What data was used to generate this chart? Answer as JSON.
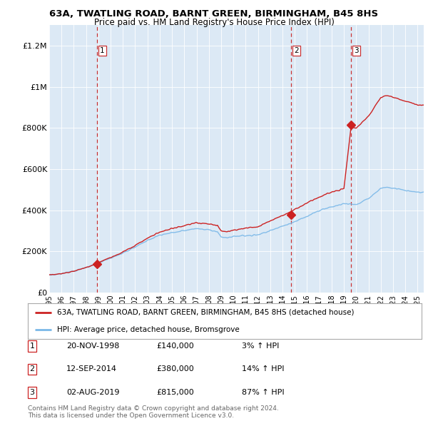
{
  "title": "63A, TWATLING ROAD, BARNT GREEN, BIRMINGHAM, B45 8HS",
  "subtitle": "Price paid vs. HM Land Registry's House Price Index (HPI)",
  "bg_color": "#dce9f5",
  "hpi_color": "#7ab8e8",
  "price_color": "#cc2222",
  "sale_marker_color": "#cc2222",
  "dashed_line_color": "#cc3333",
  "ylabel_ticks": [
    "£0",
    "£200K",
    "£400K",
    "£600K",
    "£800K",
    "£1M",
    "£1.2M"
  ],
  "ytick_values": [
    0,
    200000,
    400000,
    600000,
    800000,
    1000000,
    1200000
  ],
  "ylim": [
    0,
    1300000
  ],
  "xlim_start": 1995.0,
  "xlim_end": 2025.5,
  "sale_dates": [
    1998.88,
    2014.7,
    2019.58
  ],
  "sale_prices": [
    140000,
    380000,
    815000
  ],
  "sale_labels": [
    "1",
    "2",
    "3"
  ],
  "legend_label_red": "63A, TWATLING ROAD, BARNT GREEN, BIRMINGHAM, B45 8HS (detached house)",
  "legend_label_blue": "HPI: Average price, detached house, Bromsgrove",
  "table_rows": [
    [
      "1",
      "20-NOV-1998",
      "£140,000",
      "3% ↑ HPI"
    ],
    [
      "2",
      "12-SEP-2014",
      "£380,000",
      "14% ↑ HPI"
    ],
    [
      "3",
      "02-AUG-2019",
      "£815,000",
      "87% ↑ HPI"
    ]
  ],
  "footer": "Contains HM Land Registry data © Crown copyright and database right 2024.\nThis data is licensed under the Open Government Licence v3.0.",
  "hpi_wp_x": [
    1995,
    1996,
    1997,
    1998,
    1999,
    2000,
    2001,
    2002,
    2003,
    2004,
    2005,
    2006,
    2007,
    2008,
    2008.7,
    2009,
    2009.5,
    2010,
    2011,
    2012,
    2013,
    2014,
    2015,
    2016,
    2017,
    2018,
    2019,
    2019.6,
    2020,
    2021,
    2022,
    2022.5,
    2023,
    2024,
    2025
  ],
  "hpi_wp_y": [
    85000,
    92000,
    105000,
    122000,
    145000,
    168000,
    193000,
    222000,
    255000,
    278000,
    292000,
    302000,
    312000,
    305000,
    296000,
    270000,
    265000,
    272000,
    278000,
    280000,
    302000,
    322000,
    345000,
    372000,
    398000,
    418000,
    432000,
    430000,
    428000,
    458000,
    508000,
    513000,
    508000,
    498000,
    488000
  ],
  "price_factors_x": [
    1995,
    1998.88,
    2014.7,
    2019.0,
    2019.58,
    2020,
    2021,
    2022,
    2023,
    2024,
    2025
  ],
  "price_factors_y": [
    1.0,
    1.0,
    1.17,
    1.17,
    1.87,
    1.87,
    1.87,
    1.87,
    1.87,
    1.87,
    1.87
  ]
}
